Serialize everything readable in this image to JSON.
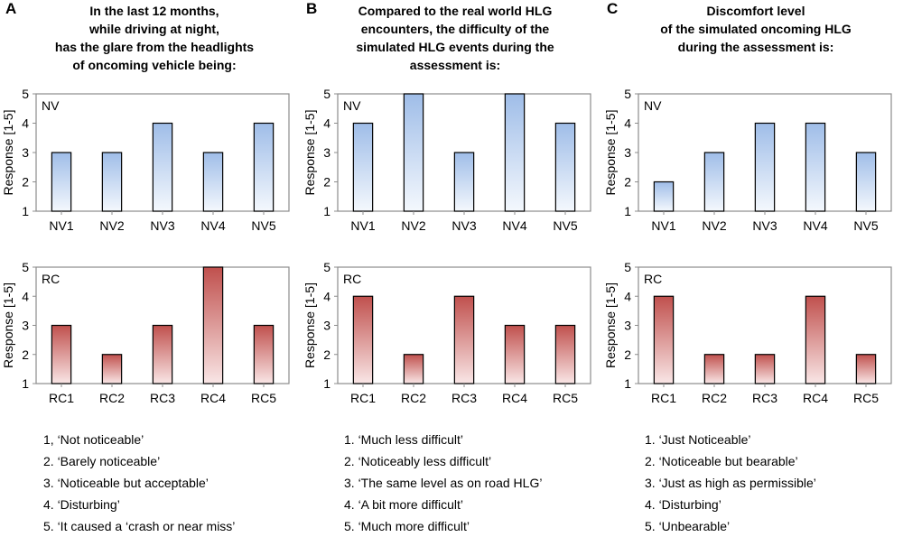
{
  "colors": {
    "nv_top": "#9fbde8",
    "nv_bottom": "#f4f8fd",
    "rc_top": "#c0504d",
    "rc_bottom": "#f9e6e6",
    "frame": "#8c8c8c",
    "grid": "#bfbfbf"
  },
  "chart_data": [
    {
      "panel_letter": "A",
      "title_lines": [
        "In the last 12 months,",
        "while driving at night,",
        "has the glare from the headlights",
        "of oncoming vehicle being:"
      ],
      "legend": [
        "1, ‘Not noticeable’",
        "2. ‘Barely noticeable’",
        "3. ‘Noticeable but acceptable’",
        "4. ‘Disturbing’",
        "5. ‘It caused a ‘crash or near miss’"
      ],
      "charts": [
        {
          "type": "bar",
          "group": "nv",
          "label": "NV",
          "ylabel": "Response [1-5]",
          "ylim": [
            1,
            5
          ],
          "yticks": [
            "1",
            "2",
            "3",
            "4",
            "5"
          ],
          "categories": [
            "NV1",
            "NV2",
            "NV3",
            "NV4",
            "NV5"
          ],
          "values": [
            3,
            3,
            4,
            3,
            4
          ]
        },
        {
          "type": "bar",
          "group": "rc",
          "label": "RC",
          "ylabel": "Response [1-5]",
          "ylim": [
            1,
            5
          ],
          "yticks": [
            "1",
            "2",
            "3",
            "4",
            "5"
          ],
          "categories": [
            "RC1",
            "RC2",
            "RC3",
            "RC4",
            "RC5"
          ],
          "values": [
            3,
            2,
            3,
            5,
            3
          ]
        }
      ]
    },
    {
      "panel_letter": "B",
      "title_lines": [
        "Compared to  the real world HLG",
        "encounters,  the difficulty of the",
        "simulated HLG  events during the",
        "assessment is:"
      ],
      "legend": [
        "1. ‘Much less difficult’",
        "2. ‘Noticeably less difficult’",
        "3. ‘The  same level as on road HLG’",
        "4. ‘A bit more difficult’",
        "5. ‘Much more difficult’"
      ],
      "charts": [
        {
          "type": "bar",
          "group": "nv",
          "label": "NV",
          "ylabel": "Response [1-5]",
          "ylim": [
            1,
            5
          ],
          "yticks": [
            "1",
            "2",
            "3",
            "4",
            "5"
          ],
          "categories": [
            "NV1",
            "NV2",
            "NV3",
            "NV4",
            "NV5"
          ],
          "values": [
            4,
            5,
            3,
            5,
            4
          ]
        },
        {
          "type": "bar",
          "group": "rc",
          "label": "RC",
          "ylabel": "Response [1-5]",
          "ylim": [
            1,
            5
          ],
          "yticks": [
            "1",
            "2",
            "3",
            "4",
            "5"
          ],
          "categories": [
            "RC1",
            "RC2",
            "RC3",
            "RC4",
            "RC5"
          ],
          "values": [
            4,
            2,
            4,
            3,
            3
          ]
        }
      ]
    },
    {
      "panel_letter": "C",
      "title_lines": [
        "Discomfort level",
        "of the simulated oncoming HLG",
        "during the assessment is:"
      ],
      "legend": [
        "1. ‘Just Noticeable’",
        "2. ‘Noticeable but bearable’",
        "3. ‘Just as high as permissible’",
        "4. ‘Disturbing’",
        "5. ‘Unbearable’"
      ],
      "charts": [
        {
          "type": "bar",
          "group": "nv",
          "label": "NV",
          "ylabel": "Response [1-5]",
          "ylim": [
            1,
            5
          ],
          "yticks": [
            "1",
            "2",
            "3",
            "4",
            "5"
          ],
          "categories": [
            "NV1",
            "NV2",
            "NV3",
            "NV4",
            "NV5"
          ],
          "values": [
            2,
            3,
            4,
            4,
            3
          ]
        },
        {
          "type": "bar",
          "group": "rc",
          "label": "RC",
          "ylabel": "Response [1-5]",
          "ylim": [
            1,
            5
          ],
          "yticks": [
            "1",
            "2",
            "3",
            "4",
            "5"
          ],
          "categories": [
            "RC1",
            "RC2",
            "RC3",
            "RC4",
            "RC5"
          ],
          "values": [
            4,
            2,
            2,
            4,
            2
          ]
        }
      ]
    }
  ]
}
